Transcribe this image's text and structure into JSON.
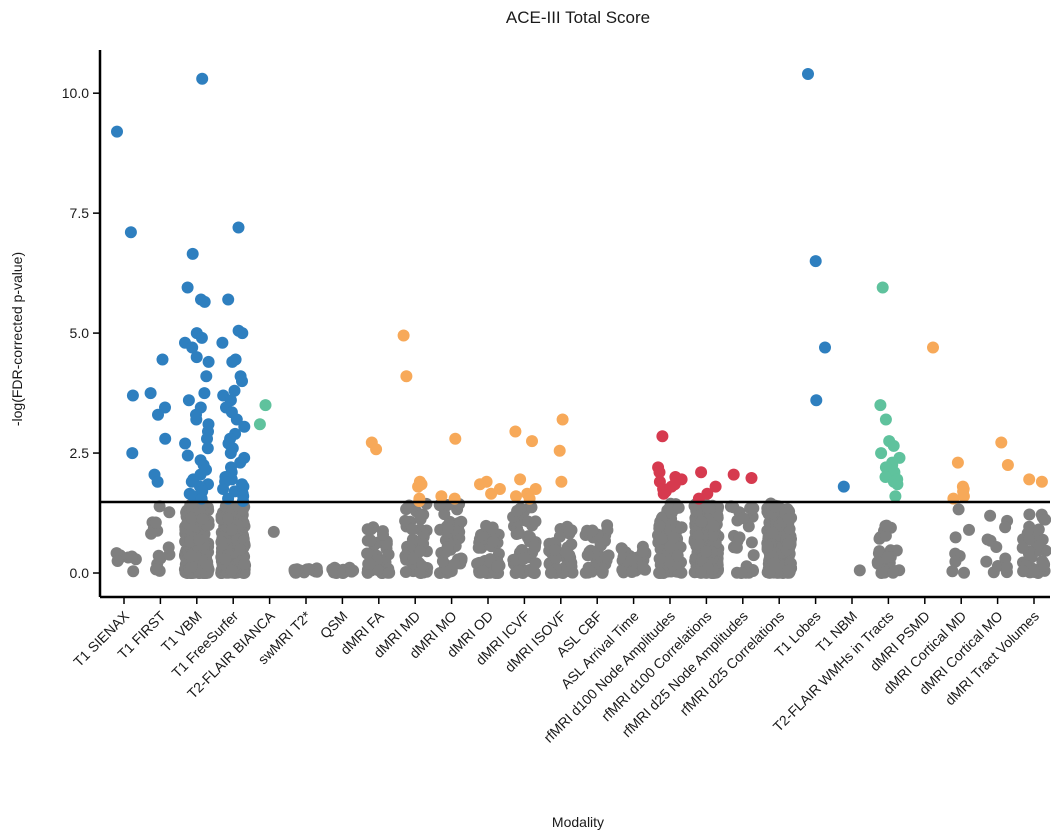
{
  "chart_data": {
    "type": "scatter",
    "title": "ACE-III Total Score",
    "xlabel": "Modality",
    "ylabel": "-log(FDR-corrected p-value)",
    "ylim": [
      -0.5,
      10.9
    ],
    "yticks": [
      0.0,
      2.5,
      5.0,
      7.5,
      10.0
    ],
    "ytick_labels": [
      "0.0",
      "2.5",
      "5.0",
      "7.5",
      "10.0"
    ],
    "threshold": 1.48,
    "grid": false,
    "legend": "none",
    "colors": {
      "nonsignificant": "#7f7f7f",
      "blue": "#2e7fbf",
      "green": "#5fc29d",
      "orange": "#f7a959",
      "red": "#d63a4f"
    },
    "categories": [
      {
        "label": "T1 SIENAX",
        "sig_color": "blue",
        "sig": [
          9.2,
          7.1,
          3.7,
          2.5
        ],
        "nonsig_n": 8,
        "nonsig_max": 0.6
      },
      {
        "label": "T1 FIRST",
        "sig_color": "blue",
        "sig": [
          4.45,
          3.75,
          3.45,
          3.3,
          2.8,
          2.05,
          1.9
        ],
        "nonsig_n": 14,
        "nonsig_max": 1.45
      },
      {
        "label": "T1 VBM",
        "sig_color": "blue",
        "sig": [
          10.3,
          6.65,
          5.95,
          5.7,
          5.65,
          5.0,
          4.9,
          4.8,
          4.7,
          4.5,
          4.4,
          4.1,
          3.75,
          3.6,
          3.45,
          3.3,
          3.2,
          3.1,
          2.95,
          2.8,
          2.7,
          2.6,
          2.45,
          2.35,
          2.25,
          2.15,
          2.05,
          1.95,
          1.9,
          1.85,
          1.8,
          1.75,
          1.7,
          1.65,
          1.6,
          1.55
        ],
        "nonsig_n": 260,
        "nonsig_max": 1.45
      },
      {
        "label": "T1 FreeSurfer",
        "sig_color": "blue",
        "sig": [
          7.2,
          5.7,
          5.05,
          5.0,
          4.8,
          4.45,
          4.4,
          4.1,
          4.0,
          3.8,
          3.7,
          3.6,
          3.45,
          3.35,
          3.2,
          3.05,
          2.9,
          2.8,
          2.7,
          2.6,
          2.5,
          2.4,
          2.3,
          2.2,
          2.1,
          2.0,
          1.95,
          1.9,
          1.85,
          1.8,
          1.75,
          1.7,
          1.65,
          1.6,
          1.55,
          1.5
        ],
        "nonsig_n": 240,
        "nonsig_max": 1.45
      },
      {
        "label": "T2-FLAIR BIANCA",
        "sig_color": "green",
        "sig": [
          3.5,
          3.1
        ],
        "nonsig_n": 1,
        "nonsig_max": 1.2
      },
      {
        "label": "swMRI T2*",
        "sig_color": "",
        "sig": [],
        "nonsig_n": 16,
        "nonsig_max": 0.1
      },
      {
        "label": "QSM",
        "sig_color": "",
        "sig": [],
        "nonsig_n": 16,
        "nonsig_max": 0.12
      },
      {
        "label": "dMRI FA",
        "sig_color": "orange",
        "sig": [
          2.72,
          2.58
        ],
        "nonsig_n": 40,
        "nonsig_max": 1.0
      },
      {
        "label": "dMRI MD",
        "sig_color": "orange",
        "sig": [
          4.95,
          4.1,
          1.9,
          1.85,
          1.8,
          1.55,
          1.5
        ],
        "nonsig_n": 55,
        "nonsig_max": 1.45
      },
      {
        "label": "dMRI MO",
        "sig_color": "orange",
        "sig": [
          2.8,
          1.6,
          1.55
        ],
        "nonsig_n": 50,
        "nonsig_max": 1.45
      },
      {
        "label": "dMRI OD",
        "sig_color": "orange",
        "sig": [
          1.9,
          1.85,
          1.75,
          1.65
        ],
        "nonsig_n": 50,
        "nonsig_max": 1.0
      },
      {
        "label": "dMRI ICVF",
        "sig_color": "orange",
        "sig": [
          2.95,
          2.75,
          1.95,
          1.75,
          1.65,
          1.6,
          1.55
        ],
        "nonsig_n": 50,
        "nonsig_max": 1.45
      },
      {
        "label": "dMRI ISOVF",
        "sig_color": "orange",
        "sig": [
          3.2,
          2.55,
          1.9
        ],
        "nonsig_n": 50,
        "nonsig_max": 1.0
      },
      {
        "label": "ASL CBF",
        "sig_color": "",
        "sig": [],
        "nonsig_n": 40,
        "nonsig_max": 1.1
      },
      {
        "label": "ASL Arrival Time",
        "sig_color": "",
        "sig": [],
        "nonsig_n": 40,
        "nonsig_max": 0.55
      },
      {
        "label": "rfMRI d100 Node Amplitudes",
        "sig_color": "red",
        "sig": [
          2.85,
          2.2,
          2.1,
          2.0,
          1.95,
          1.9,
          1.85,
          1.8,
          1.75,
          1.7,
          1.65
        ],
        "nonsig_n": 90,
        "nonsig_max": 1.45
      },
      {
        "label": "rfMRI d100 Correlations",
        "sig_color": "red",
        "sig": [
          2.1,
          1.8,
          1.65,
          1.55
        ],
        "nonsig_n": 260,
        "nonsig_max": 1.45
      },
      {
        "label": "rfMRI d25 Node Amplitudes",
        "sig_color": "red",
        "sig": [
          2.05,
          1.98
        ],
        "nonsig_n": 25,
        "nonsig_max": 1.45
      },
      {
        "label": "rfMRI d25 Correlations",
        "sig_color": "",
        "sig": [],
        "nonsig_n": 200,
        "nonsig_max": 1.45
      },
      {
        "label": "T1 Lobes",
        "sig_color": "blue",
        "sig": [
          10.4,
          6.5,
          4.7,
          3.6
        ],
        "nonsig_n": 0,
        "nonsig_max": 0
      },
      {
        "label": "T1 NBM",
        "sig_color": "blue",
        "sig": [
          1.8
        ],
        "nonsig_n": 1,
        "nonsig_max": 0.8
      },
      {
        "label": "T2-FLAIR WMHs in Tracts",
        "sig_color": "green",
        "sig": [
          5.95,
          3.5,
          3.2,
          2.75,
          2.65,
          2.5,
          2.4,
          2.3,
          2.25,
          2.2,
          2.1,
          2.0,
          1.95,
          1.9,
          1.85,
          1.6
        ],
        "nonsig_n": 30,
        "nonsig_max": 1.05
      },
      {
        "label": "dMRI PSMD",
        "sig_color": "orange",
        "sig": [
          4.7
        ],
        "nonsig_n": 0,
        "nonsig_max": 0
      },
      {
        "label": "dMRI Cortical MD",
        "sig_color": "orange",
        "sig": [
          2.3,
          1.8,
          1.75,
          1.7,
          1.6,
          1.55
        ],
        "nonsig_n": 8,
        "nonsig_max": 1.45
      },
      {
        "label": "dMRI Cortical MO",
        "sig_color": "orange",
        "sig": [
          2.72,
          2.25
        ],
        "nonsig_n": 12,
        "nonsig_max": 1.2
      },
      {
        "label": "dMRI Tract Volumes",
        "sig_color": "orange",
        "sig": [
          1.95,
          1.9
        ],
        "nonsig_n": 45,
        "nonsig_max": 1.3
      }
    ]
  }
}
